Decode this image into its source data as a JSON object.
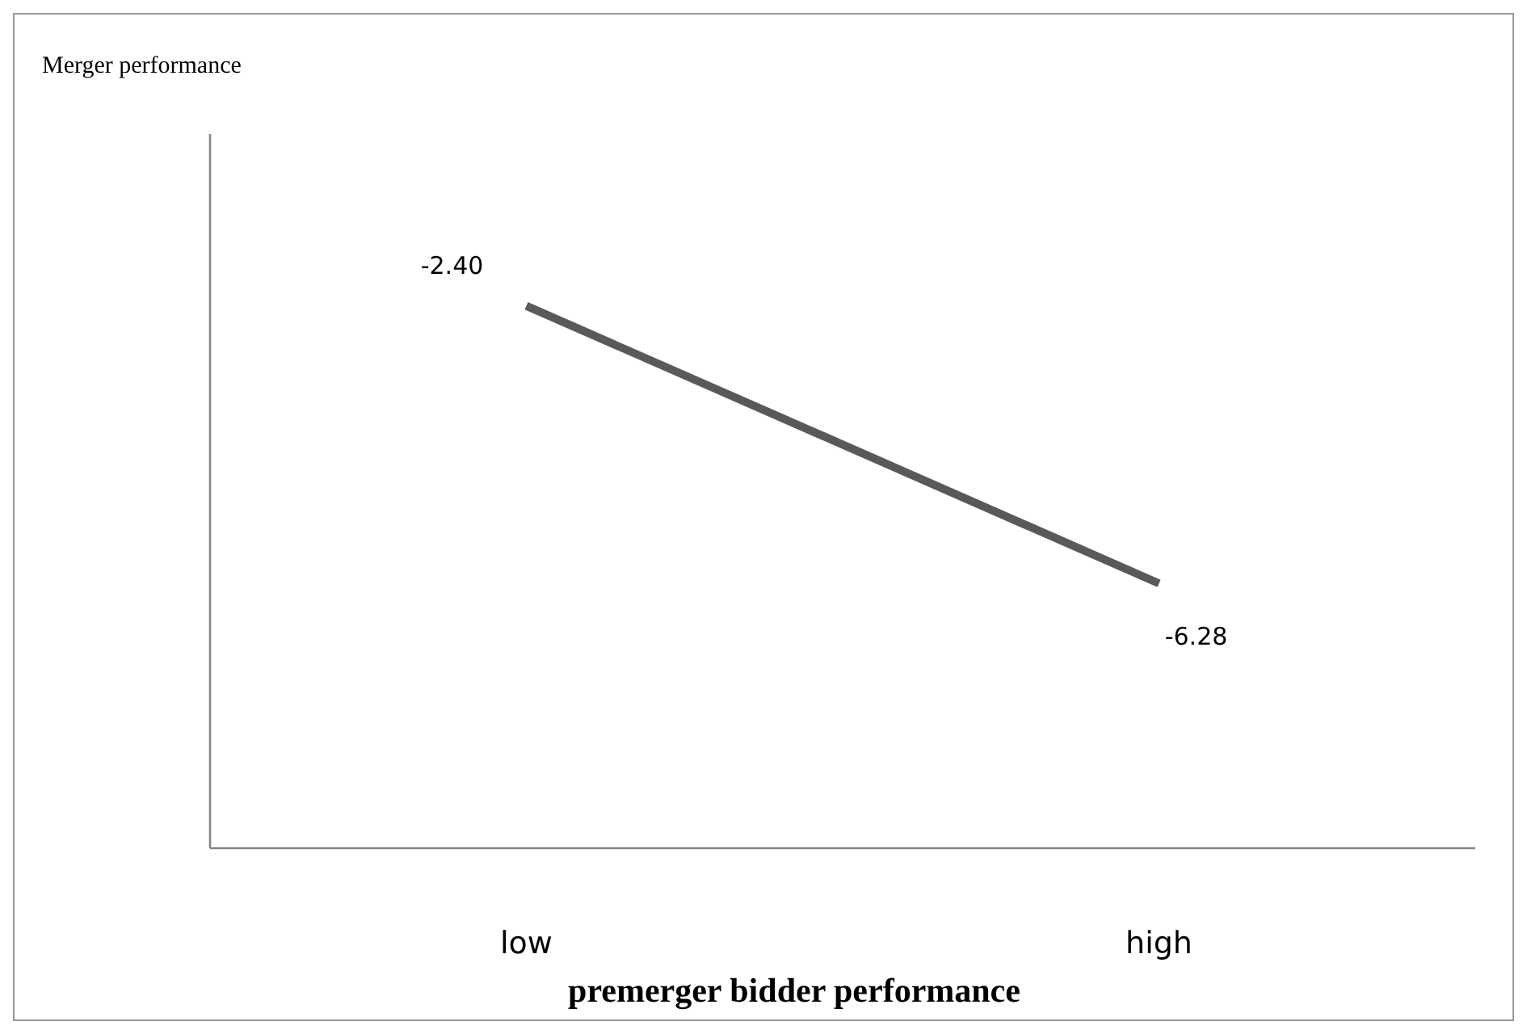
{
  "chart_data": {
    "type": "line",
    "xlabel": "premerger bidder performance",
    "annotations": [
      "Merger performance"
    ],
    "categories": [
      "low",
      "high"
    ],
    "series": [
      {
        "color": "#595959",
        "values": [
          -2.4,
          -6.28
        ],
        "value_labels": [
          "-2.40",
          "-6.28"
        ]
      }
    ],
    "tick_labels": "x",
    "grid": false,
    "marker": "none"
  }
}
